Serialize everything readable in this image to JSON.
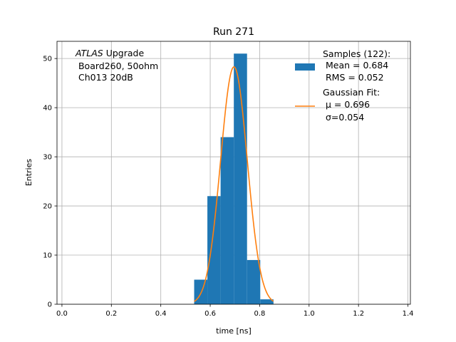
{
  "chart_data": {
    "type": "bar",
    "title": "Run 271",
    "xlabel": "time [ns]",
    "ylabel": "Entries",
    "xlim": [
      -0.02,
      1.41
    ],
    "ylim": [
      0,
      53.5
    ],
    "xticks": [
      0.0,
      0.2,
      0.4,
      0.6,
      0.8,
      1.0,
      1.2,
      1.4
    ],
    "xtick_labels": [
      "0.0",
      "0.2",
      "0.4",
      "0.6",
      "0.8",
      "1.0",
      "1.2",
      "1.4"
    ],
    "yticks": [
      0,
      10,
      20,
      30,
      40,
      50
    ],
    "ytick_labels": [
      "0",
      "10",
      "20",
      "30",
      "40",
      "50"
    ],
    "grid": true,
    "legend_position": "top-right",
    "annotation": {
      "atlas": "ATLAS",
      "line1_rest": " Upgrade",
      "line2": " Board260, 50ohm",
      "line3": " Ch013 20dB"
    },
    "histogram": {
      "name": "Samples (122):",
      "stats_mean": " Mean = 0.684",
      "stats_rms": " RMS = 0.052",
      "color": "#1f77b4",
      "bin_edges": [
        0.535,
        0.5885,
        0.642,
        0.6955,
        0.749,
        0.8025,
        0.856
      ],
      "counts": [
        5,
        22,
        34,
        51,
        9,
        1
      ]
    },
    "fit": {
      "name": "Gaussian Fit:",
      "mu_label": " μ = 0.696",
      "sigma_label": " σ=0.054",
      "color": "#ff7f0e",
      "mu": 0.696,
      "sigma": 0.054,
      "amplitude": 48.3,
      "range": [
        0.535,
        0.856
      ]
    }
  }
}
